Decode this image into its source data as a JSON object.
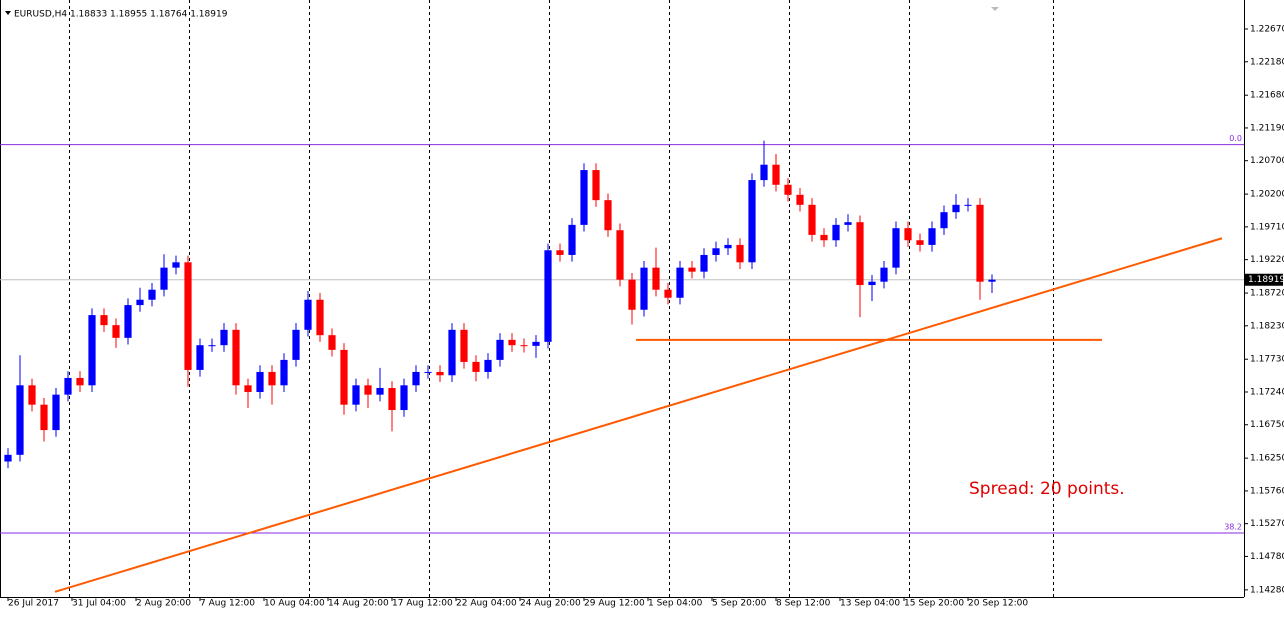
{
  "chart_data": {
    "type": "candlestick",
    "header": "EURUSD,H4  1.18833 1.18955 1.18764 1.18919",
    "x": [
      0,
      3,
      6,
      9,
      12,
      15,
      18,
      21,
      24,
      27,
      30,
      33,
      36,
      39,
      42,
      45,
      48,
      51,
      54,
      57,
      60,
      63,
      66,
      69,
      72,
      75,
      78,
      81,
      84,
      87,
      90,
      93,
      96,
      99,
      102,
      105,
      108,
      111,
      114,
      117,
      120,
      123,
      126,
      129,
      132,
      135,
      138,
      141,
      144,
      147,
      150,
      153,
      156,
      159,
      162,
      165,
      168,
      171,
      174,
      177,
      180,
      183,
      186,
      189,
      192,
      195,
      198,
      201,
      204,
      207,
      210,
      213,
      216,
      219,
      222,
      225,
      228,
      231,
      234,
      237,
      240,
      243,
      246
    ],
    "open": [
      1.162,
      1.163,
      1.1734,
      1.1705,
      1.1667,
      1.172,
      1.1745,
      1.1734,
      1.1839,
      1.1824,
      1.1805,
      1.1854,
      1.1862,
      1.1877,
      1.191,
      1.1918,
      1.1757,
      1.1794,
      1.1794,
      1.1817,
      1.1734,
      1.1724,
      1.1754,
      1.1734,
      1.1772,
      1.1817,
      1.1862,
      1.1809,
      1.1787,
      1.1705,
      1.1734,
      1.172,
      1.173,
      1.1697,
      1.1734,
      1.1754,
      1.1754,
      1.1749,
      1.1817,
      1.1769,
      1.1754,
      1.1772,
      1.1802,
      1.1794,
      1.1793,
      1.1799,
      1.1936,
      1.1929,
      1.1974,
      1.2056,
      1.2011,
      1.1966,
      1.1892,
      1.1847,
      1.191,
      1.1877,
      1.1865,
      1.191,
      1.1904,
      1.1929,
      1.1939,
      1.1944,
      1.1918,
      1.2041,
      1.2064,
      1.2034,
      1.2019,
      1.2004,
      1.1959,
      1.1951,
      1.1974,
      1.1978,
      1.1884,
      1.1889,
      1.191,
      1.1969,
      1.1951,
      1.1944,
      1.1969,
      1.1993,
      1.2004,
      1.2004,
      1.1889
    ],
    "high": [
      1.164,
      1.1779,
      1.1744,
      1.1715,
      1.173,
      1.1755,
      1.1755,
      1.1849,
      1.1849,
      1.1834,
      1.1864,
      1.188,
      1.1887,
      1.193,
      1.1928,
      1.1928,
      1.1804,
      1.1804,
      1.1827,
      1.1827,
      1.1744,
      1.1764,
      1.1764,
      1.1782,
      1.1827,
      1.1875,
      1.1872,
      1.1819,
      1.1797,
      1.1744,
      1.1744,
      1.176,
      1.174,
      1.1744,
      1.1764,
      1.1764,
      1.1764,
      1.1827,
      1.1827,
      1.1779,
      1.1782,
      1.1812,
      1.1812,
      1.1804,
      1.1809,
      1.1946,
      1.1946,
      1.1984,
      1.2066,
      1.2066,
      1.2021,
      1.1976,
      1.1902,
      1.192,
      1.194,
      1.1887,
      1.192,
      1.192,
      1.1939,
      1.1949,
      1.1954,
      1.1954,
      1.2051,
      1.21,
      1.208,
      1.2044,
      1.2029,
      1.2014,
      1.1969,
      1.1984,
      1.199,
      1.1988,
      1.1899,
      1.192,
      1.1979,
      1.1979,
      1.1961,
      1.1979,
      1.2003,
      1.202,
      1.2014,
      1.2014,
      1.19
    ],
    "low": [
      1.161,
      1.162,
      1.1695,
      1.165,
      1.1657,
      1.171,
      1.1724,
      1.1724,
      1.1814,
      1.179,
      1.1795,
      1.1844,
      1.1852,
      1.1867,
      1.19,
      1.1732,
      1.1747,
      1.1784,
      1.1784,
      1.172,
      1.17,
      1.1714,
      1.1705,
      1.1724,
      1.1762,
      1.1807,
      1.1799,
      1.1777,
      1.169,
      1.1695,
      1.17,
      1.171,
      1.1665,
      1.1687,
      1.1724,
      1.1744,
      1.1739,
      1.1739,
      1.1759,
      1.174,
      1.1744,
      1.1762,
      1.1784,
      1.1783,
      1.1775,
      1.1789,
      1.1919,
      1.1919,
      1.1964,
      1.2001,
      1.1956,
      1.1882,
      1.1825,
      1.1837,
      1.1867,
      1.1855,
      1.1855,
      1.1894,
      1.1894,
      1.1919,
      1.1929,
      1.1908,
      1.1908,
      1.2031,
      1.2024,
      1.2009,
      1.1994,
      1.1949,
      1.1941,
      1.1941,
      1.1964,
      1.1836,
      1.186,
      1.1879,
      1.19,
      1.1941,
      1.1934,
      1.1934,
      1.1959,
      1.1983,
      1.1994,
      1.1862,
      1.1872
    ],
    "close": [
      1.163,
      1.1734,
      1.1705,
      1.1667,
      1.172,
      1.1745,
      1.1734,
      1.1839,
      1.1824,
      1.1805,
      1.1854,
      1.1862,
      1.1877,
      1.191,
      1.1918,
      1.1757,
      1.1794,
      1.1794,
      1.1817,
      1.1734,
      1.1724,
      1.1754,
      1.1734,
      1.1772,
      1.1817,
      1.1862,
      1.1809,
      1.1787,
      1.1705,
      1.1734,
      1.172,
      1.173,
      1.1697,
      1.1734,
      1.1754,
      1.1754,
      1.1749,
      1.1817,
      1.1769,
      1.1754,
      1.1772,
      1.1802,
      1.1794,
      1.1793,
      1.1799,
      1.1936,
      1.1929,
      1.1974,
      1.2056,
      1.2011,
      1.1966,
      1.1892,
      1.1847,
      1.191,
      1.1877,
      1.1865,
      1.191,
      1.1904,
      1.1929,
      1.1939,
      1.1944,
      1.1918,
      1.2041,
      1.2064,
      1.2034,
      1.2019,
      1.2004,
      1.1959,
      1.1951,
      1.1974,
      1.1978,
      1.1884,
      1.1889,
      1.191,
      1.1969,
      1.1951,
      1.1944,
      1.1969,
      1.1993,
      1.2004,
      1.2004,
      1.1889,
      1.1892
    ],
    "up_color": "#0000ff",
    "down_color": "#ff0000",
    "xlim": [
      -2,
      309
    ],
    "ylim": [
      1.14173,
      1.23104
    ],
    "xticks": [
      {
        "value": 0,
        "label": "26 Jul 2017"
      },
      {
        "value": 16,
        "label": "31 Jul 04:00"
      },
      {
        "value": 32,
        "label": "2 Aug 20:00"
      },
      {
        "value": 48,
        "label": "7 Aug 12:00"
      },
      {
        "value": 64,
        "label": "10 Aug 04:00"
      },
      {
        "value": 80,
        "label": "14 Aug 20:00"
      },
      {
        "value": 96,
        "label": "17 Aug 12:00"
      },
      {
        "value": 112,
        "label": "22 Aug 04:00"
      },
      {
        "value": 128,
        "label": "24 Aug 20:00"
      },
      {
        "value": 144,
        "label": "29 Aug 12:00"
      },
      {
        "value": 160,
        "label": "1 Sep 04:00"
      },
      {
        "value": 176,
        "label": "5 Sep 20:00"
      },
      {
        "value": 192,
        "label": "8 Sep 12:00"
      },
      {
        "value": 208,
        "label": "13 Sep 04:00"
      },
      {
        "value": 224,
        "label": "15 Sep 20:00"
      },
      {
        "value": 240,
        "label": "20 Sep 12:00"
      }
    ],
    "yticks": [
      {
        "value": 1.2267,
        "label": "1.22670"
      },
      {
        "value": 1.2218,
        "label": "1.22180"
      },
      {
        "value": 1.2168,
        "label": "1.21680"
      },
      {
        "value": 1.2119,
        "label": "1.21190"
      },
      {
        "value": 1.207,
        "label": "1.20700"
      },
      {
        "value": 1.202,
        "label": "1.20200"
      },
      {
        "value": 1.1971,
        "label": "1.19710"
      },
      {
        "value": 1.1922,
        "label": "1.19220"
      },
      {
        "value": 1.1872,
        "label": "1.18720"
      },
      {
        "value": 1.1823,
        "label": "1.18230"
      },
      {
        "value": 1.1773,
        "label": "1.17730"
      },
      {
        "value": 1.1724,
        "label": "1.17240"
      },
      {
        "value": 1.1675,
        "label": "1.16750"
      },
      {
        "value": 1.1625,
        "label": "1.16250"
      },
      {
        "value": 1.1576,
        "label": "1.15760"
      },
      {
        "value": 1.1527,
        "label": "1.15270"
      },
      {
        "value": 1.1478,
        "label": "1.14780"
      },
      {
        "value": 1.1428,
        "label": "1.14280"
      }
    ],
    "last_price": 1.18919,
    "levels": [
      {
        "value": 1.2094,
        "label": "0.0",
        "color": "#8a2be2"
      },
      {
        "value": 1.1513,
        "label": "38.2",
        "color": "#8a2be2"
      }
    ],
    "trendlines": [
      {
        "x": [
          11.75,
          303.5
        ],
        "y": [
          1.1425,
          1.1954
        ],
        "color": "#ff5a00"
      },
      {
        "x": [
          157,
          273.5
        ],
        "y": [
          1.1802,
          1.1802
        ],
        "color": "#ff5a00"
      }
    ],
    "annotation": "Spread: 20 points."
  }
}
